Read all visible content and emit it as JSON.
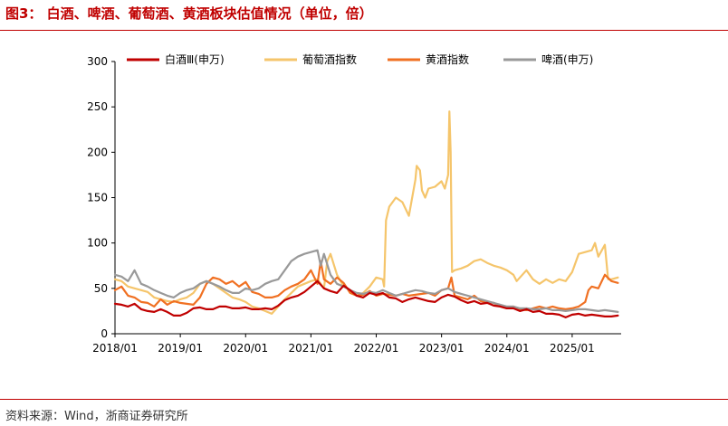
{
  "figure": {
    "title": "图3：  白酒、啤酒、葡萄酒、黄酒板块估值情况（单位，倍）",
    "source": "资料来源：Wind，浙商证券研究所"
  },
  "chart_data": {
    "type": "line",
    "title": "图3：  白酒、啤酒、葡萄酒、黄酒板块估值情况（单位，倍）",
    "ylim": [
      0,
      300
    ],
    "yticks": [
      0,
      50,
      100,
      150,
      200,
      250,
      300
    ],
    "xlim": [
      2018.0,
      2025.75
    ],
    "xticks": [
      {
        "value": 2018,
        "label": "2018/01"
      },
      {
        "value": 2019,
        "label": "2019/01"
      },
      {
        "value": 2020,
        "label": "2020/01"
      },
      {
        "value": 2021,
        "label": "2021/01"
      },
      {
        "value": 2022,
        "label": "2022/01"
      },
      {
        "value": 2023,
        "label": "2023/01"
      },
      {
        "value": 2024,
        "label": "2024/01"
      },
      {
        "value": 2025,
        "label": "2025/01"
      }
    ],
    "grid": false,
    "legend_position": "top",
    "series": [
      {
        "name": "白酒Ⅲ(申万)",
        "color": "#c00000",
        "x": [
          2018.0,
          2018.1,
          2018.2,
          2018.3,
          2018.4,
          2018.5,
          2018.6,
          2018.7,
          2018.8,
          2018.9,
          2019.0,
          2019.1,
          2019.2,
          2019.3,
          2019.4,
          2019.5,
          2019.6,
          2019.7,
          2019.8,
          2019.9,
          2020.0,
          2020.1,
          2020.2,
          2020.3,
          2020.4,
          2020.5,
          2020.6,
          2020.7,
          2020.8,
          2020.9,
          2021.0,
          2021.1,
          2021.2,
          2021.3,
          2021.4,
          2021.5,
          2021.6,
          2021.7,
          2021.8,
          2021.9,
          2022.0,
          2022.1,
          2022.2,
          2022.3,
          2022.4,
          2022.5,
          2022.6,
          2022.7,
          2022.8,
          2022.9,
          2023.0,
          2023.1,
          2023.2,
          2023.3,
          2023.4,
          2023.5,
          2023.6,
          2023.7,
          2023.8,
          2023.9,
          2024.0,
          2024.1,
          2024.2,
          2024.3,
          2024.4,
          2024.5,
          2024.6,
          2024.7,
          2024.8,
          2024.9,
          2025.0,
          2025.1,
          2025.2,
          2025.3,
          2025.4,
          2025.5,
          2025.6,
          2025.7
        ],
        "values": [
          33,
          32,
          30,
          33,
          27,
          25,
          24,
          27,
          24,
          20,
          20,
          23,
          28,
          29,
          27,
          27,
          30,
          30,
          28,
          28,
          29,
          27,
          27,
          28,
          27,
          31,
          37,
          40,
          42,
          46,
          52,
          58,
          50,
          47,
          45,
          53,
          48,
          42,
          40,
          45,
          43,
          45,
          40,
          39,
          35,
          38,
          40,
          38,
          36,
          35,
          40,
          43,
          41,
          37,
          34,
          36,
          33,
          34,
          31,
          30,
          28,
          28,
          25,
          27,
          24,
          25,
          22,
          22,
          21,
          18,
          21,
          22,
          20,
          21,
          20,
          19,
          19,
          20
        ]
      },
      {
        "name": "葡萄酒指数",
        "color": "#f5c56b",
        "x": [
          2018.0,
          2018.1,
          2018.2,
          2018.3,
          2018.4,
          2018.5,
          2018.6,
          2018.7,
          2018.8,
          2018.9,
          2019.0,
          2019.1,
          2019.2,
          2019.3,
          2019.4,
          2019.5,
          2019.6,
          2019.7,
          2019.8,
          2019.9,
          2020.0,
          2020.1,
          2020.2,
          2020.3,
          2020.4,
          2020.5,
          2020.6,
          2020.7,
          2020.8,
          2020.9,
          2021.0,
          2021.1,
          2021.2,
          2021.25,
          2021.3,
          2021.4,
          2021.5,
          2021.6,
          2021.7,
          2021.8,
          2021.9,
          2022.0,
          2022.1,
          2022.12,
          2022.15,
          2022.2,
          2022.3,
          2022.4,
          2022.5,
          2022.6,
          2022.62,
          2022.67,
          2022.7,
          2022.75,
          2022.8,
          2022.9,
          2023.0,
          2023.05,
          2023.1,
          2023.12,
          2023.14,
          2023.16,
          2023.2,
          2023.3,
          2023.4,
          2023.5,
          2023.6,
          2023.7,
          2023.8,
          2023.9,
          2024.0,
          2024.1,
          2024.15,
          2024.2,
          2024.3,
          2024.4,
          2024.5,
          2024.6,
          2024.7,
          2024.8,
          2024.9,
          2025.0,
          2025.05,
          2025.1,
          2025.2,
          2025.3,
          2025.35,
          2025.4,
          2025.5,
          2025.55,
          2025.6,
          2025.7
        ],
        "values": [
          60,
          58,
          52,
          50,
          48,
          46,
          40,
          38,
          36,
          35,
          38,
          40,
          45,
          55,
          58,
          55,
          50,
          45,
          40,
          38,
          35,
          30,
          28,
          25,
          22,
          30,
          38,
          45,
          52,
          55,
          58,
          60,
          50,
          80,
          88,
          65,
          52,
          48,
          42,
          45,
          52,
          62,
          60,
          52,
          125,
          140,
          150,
          145,
          130,
          170,
          185,
          180,
          158,
          150,
          160,
          162,
          168,
          160,
          175,
          245,
          200,
          68,
          70,
          72,
          75,
          80,
          82,
          78,
          75,
          73,
          70,
          65,
          58,
          62,
          70,
          60,
          55,
          60,
          56,
          60,
          58,
          68,
          78,
          88,
          90,
          92,
          100,
          85,
          98,
          60,
          60,
          62
        ]
      },
      {
        "name": "黄酒指数",
        "color": "#f07022",
        "x": [
          2018.0,
          2018.1,
          2018.2,
          2018.3,
          2018.4,
          2018.5,
          2018.6,
          2018.7,
          2018.8,
          2018.9,
          2019.0,
          2019.1,
          2019.2,
          2019.3,
          2019.4,
          2019.5,
          2019.6,
          2019.7,
          2019.8,
          2019.9,
          2020.0,
          2020.1,
          2020.2,
          2020.3,
          2020.4,
          2020.5,
          2020.6,
          2020.7,
          2020.8,
          2020.9,
          2021.0,
          2021.1,
          2021.15,
          2021.2,
          2021.3,
          2021.4,
          2021.5,
          2021.6,
          2021.7,
          2021.8,
          2021.9,
          2022.0,
          2022.1,
          2022.2,
          2022.3,
          2022.4,
          2022.5,
          2022.6,
          2022.7,
          2022.8,
          2022.9,
          2023.0,
          2023.1,
          2023.15,
          2023.2,
          2023.3,
          2023.4,
          2023.5,
          2023.6,
          2023.7,
          2023.8,
          2023.9,
          2024.0,
          2024.1,
          2024.2,
          2024.3,
          2024.4,
          2024.5,
          2024.6,
          2024.7,
          2024.8,
          2024.9,
          2025.0,
          2025.1,
          2025.2,
          2025.25,
          2025.3,
          2025.4,
          2025.5,
          2025.6,
          2025.7
        ],
        "values": [
          48,
          52,
          42,
          40,
          35,
          34,
          30,
          38,
          32,
          36,
          34,
          33,
          32,
          40,
          55,
          62,
          60,
          55,
          58,
          52,
          57,
          46,
          44,
          40,
          40,
          42,
          48,
          52,
          55,
          60,
          70,
          55,
          80,
          60,
          55,
          62,
          56,
          45,
          42,
          43,
          47,
          42,
          44,
          43,
          42,
          44,
          42,
          43,
          44,
          45,
          42,
          48,
          50,
          62,
          42,
          40,
          38,
          42,
          36,
          35,
          34,
          30,
          28,
          30,
          27,
          26,
          28,
          30,
          28,
          30,
          28,
          27,
          28,
          30,
          35,
          48,
          52,
          50,
          65,
          58,
          56
        ]
      },
      {
        "name": "啤酒(申万)",
        "color": "#999999",
        "x": [
          2018.0,
          2018.1,
          2018.2,
          2018.3,
          2018.4,
          2018.5,
          2018.6,
          2018.7,
          2018.8,
          2018.9,
          2019.0,
          2019.1,
          2019.2,
          2019.3,
          2019.4,
          2019.5,
          2019.6,
          2019.7,
          2019.8,
          2019.9,
          2020.0,
          2020.1,
          2020.2,
          2020.3,
          2020.4,
          2020.5,
          2020.6,
          2020.7,
          2020.8,
          2020.9,
          2021.0,
          2021.1,
          2021.15,
          2021.2,
          2021.3,
          2021.4,
          2021.5,
          2021.6,
          2021.7,
          2021.8,
          2021.9,
          2022.0,
          2022.1,
          2022.2,
          2022.3,
          2022.4,
          2022.5,
          2022.6,
          2022.7,
          2022.8,
          2022.9,
          2023.0,
          2023.1,
          2023.2,
          2023.3,
          2023.4,
          2023.5,
          2023.6,
          2023.7,
          2023.8,
          2023.9,
          2024.0,
          2024.1,
          2024.2,
          2024.3,
          2024.4,
          2024.5,
          2024.6,
          2024.7,
          2024.8,
          2024.9,
          2025.0,
          2025.1,
          2025.2,
          2025.3,
          2025.4,
          2025.5,
          2025.6,
          2025.7
        ],
        "values": [
          65,
          63,
          58,
          70,
          55,
          52,
          48,
          45,
          42,
          40,
          45,
          48,
          50,
          55,
          58,
          55,
          52,
          48,
          45,
          45,
          50,
          48,
          50,
          55,
          58,
          60,
          70,
          80,
          85,
          88,
          90,
          92,
          75,
          88,
          65,
          55,
          52,
          48,
          45,
          44,
          46,
          45,
          48,
          45,
          42,
          44,
          46,
          48,
          47,
          45,
          44,
          48,
          50,
          46,
          44,
          42,
          40,
          38,
          36,
          34,
          32,
          30,
          30,
          28,
          28,
          27,
          27,
          28,
          26,
          26,
          25,
          26,
          27,
          27,
          26,
          25,
          26,
          25,
          24
        ]
      }
    ]
  }
}
